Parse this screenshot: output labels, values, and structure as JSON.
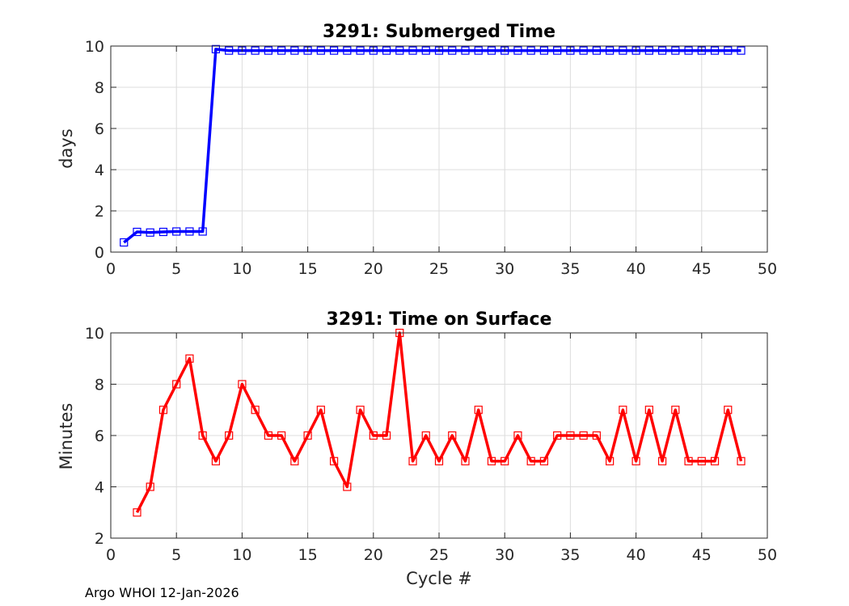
{
  "chart_data": [
    {
      "type": "line",
      "title": "3291: Submerged Time",
      "xlabel": "",
      "ylabel": "days",
      "xlim": [
        0,
        50
      ],
      "ylim": [
        0,
        10
      ],
      "xticks": [
        "0",
        "5",
        "10",
        "15",
        "20",
        "25",
        "30",
        "35",
        "40",
        "45",
        "50"
      ],
      "yticks": [
        "0",
        "2",
        "4",
        "6",
        "8",
        "10"
      ],
      "grid": true,
      "color": "#0000ff",
      "marker": "square",
      "x": [
        1,
        2,
        3,
        4,
        5,
        6,
        7,
        8,
        9,
        10,
        11,
        12,
        13,
        14,
        15,
        16,
        17,
        18,
        19,
        20,
        21,
        22,
        23,
        24,
        25,
        26,
        27,
        28,
        29,
        30,
        31,
        32,
        33,
        34,
        35,
        36,
        37,
        38,
        39,
        40,
        41,
        42,
        43,
        44,
        45,
        46,
        47,
        48
      ],
      "y": [
        0.47,
        0.98,
        0.95,
        0.98,
        1.0,
        1.0,
        1.0,
        9.85,
        9.78,
        9.78,
        9.78,
        9.78,
        9.78,
        9.78,
        9.78,
        9.78,
        9.78,
        9.78,
        9.78,
        9.78,
        9.78,
        9.78,
        9.78,
        9.78,
        9.78,
        9.78,
        9.78,
        9.78,
        9.78,
        9.78,
        9.78,
        9.78,
        9.78,
        9.78,
        9.78,
        9.78,
        9.78,
        9.78,
        9.78,
        9.78,
        9.78,
        9.78,
        9.78,
        9.78,
        9.78,
        9.78,
        9.78,
        9.78
      ]
    },
    {
      "type": "line",
      "title": "3291: Time on Surface",
      "xlabel": "Cycle #",
      "ylabel": "Minutes",
      "xlim": [
        0,
        50
      ],
      "ylim": [
        2,
        10
      ],
      "xticks": [
        "0",
        "5",
        "10",
        "15",
        "20",
        "25",
        "30",
        "35",
        "40",
        "45",
        "50"
      ],
      "yticks": [
        "2",
        "4",
        "6",
        "8",
        "10"
      ],
      "grid": true,
      "color": "#ff0000",
      "marker": "square",
      "x": [
        2,
        3,
        4,
        5,
        6,
        7,
        8,
        9,
        10,
        11,
        12,
        13,
        14,
        15,
        16,
        17,
        18,
        19,
        20,
        21,
        22,
        23,
        24,
        25,
        26,
        27,
        28,
        29,
        30,
        31,
        32,
        33,
        34,
        35,
        36,
        37,
        38,
        39,
        40,
        41,
        42,
        43,
        44,
        45,
        46,
        47,
        48
      ],
      "y": [
        3,
        4,
        7,
        8,
        9,
        6,
        5,
        6,
        8,
        7,
        6,
        6,
        5,
        6,
        7,
        5,
        4,
        7,
        6,
        6,
        10,
        5,
        6,
        5,
        6,
        5,
        7,
        5,
        5,
        6,
        5,
        5,
        6,
        6,
        6,
        6,
        5,
        7,
        5,
        7,
        5,
        7,
        5,
        5,
        5,
        7,
        5
      ]
    }
  ],
  "footer": "Argo WHOI 12-Jan-2026"
}
